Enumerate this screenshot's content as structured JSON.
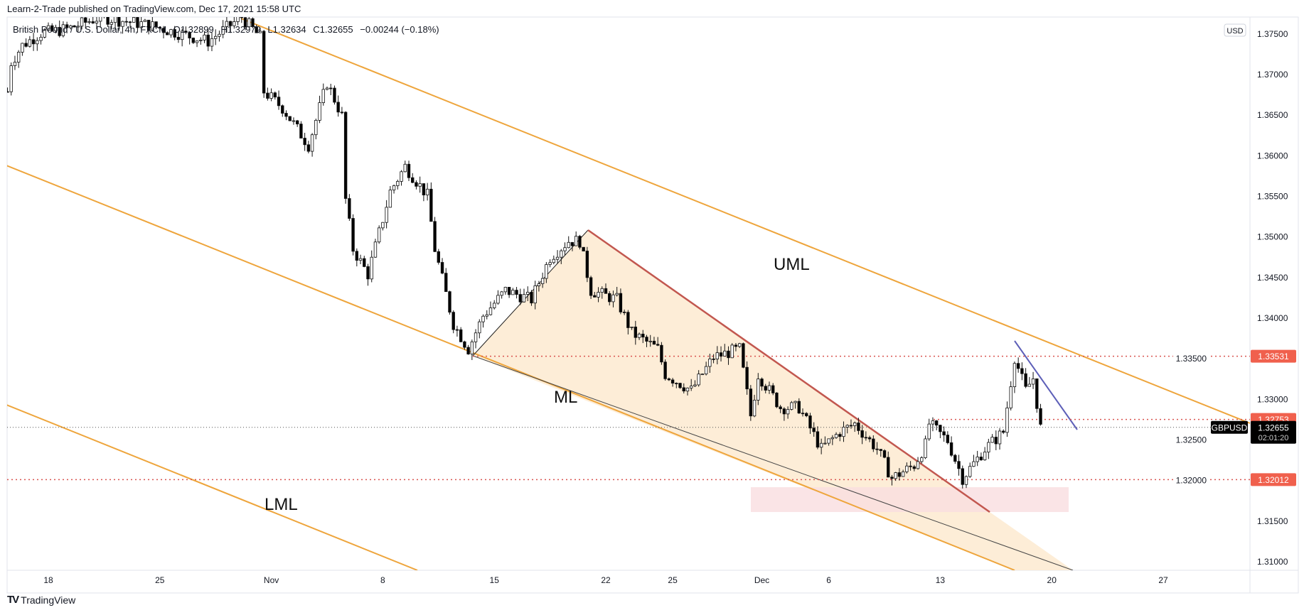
{
  "header": {
    "published": "Learn-2-Trade published on TradingView.com, Dec 17, 2021 15:58 UTC"
  },
  "legend": {
    "symbol": "British Pound / U.S. Dollar, 4h, FXCM",
    "open": "O1.32899",
    "high": "H1.32979",
    "low": "L1.32634",
    "close": "C1.32655",
    "change": "−0.00244 (−0.18%)"
  },
  "footer": {
    "logo": "TradingView"
  },
  "chart_data": {
    "type": "candlestick",
    "symbol": "GBPUSD",
    "currency": "USD",
    "interval": "4h",
    "colors": {
      "channel": "#eea53c",
      "wedge_fill": "#fdebd3",
      "wedge_upper": "#c2574f",
      "trend_blue": "#5d5fb8",
      "level": "#d9534f",
      "zone": "#f9dde0",
      "up_body": "#ffffff",
      "down_body": "#000000"
    },
    "y_ticks": [
      "1.37500",
      "1.37000",
      "1.36500",
      "1.36000",
      "1.35500",
      "1.35000",
      "1.34500",
      "1.34000",
      "1.33500",
      "1.33000",
      "1.32500",
      "1.32000",
      "1.31500",
      "1.31000"
    ],
    "x_ticks": [
      "18",
      "25",
      "Nov",
      "8",
      "15",
      "22",
      "25",
      "Dec",
      "6",
      "13",
      "20",
      "27"
    ],
    "ylim": [
      1.3085,
      1.379
    ],
    "labels": {
      "uml": "UML",
      "ml": "ML",
      "lml": "LML"
    },
    "levels": [
      {
        "price": "1.33531"
      },
      {
        "price": "1.32753"
      },
      {
        "price": "1.32012"
      }
    ],
    "last_price": {
      "symbol": "GBPUSD",
      "price": "1.32655",
      "countdown": "02:01:20"
    },
    "price_path": [
      {
        "t": "2021-10-14T04:00",
        "p": 1.3679
      },
      {
        "t": "2021-10-14T08:00",
        "p": 1.3715
      },
      {
        "t": "2021-10-14T20:00",
        "p": 1.3736
      },
      {
        "t": "2021-10-15T16:00",
        "p": 1.3751
      },
      {
        "t": "2021-10-18T20:00",
        "p": 1.3756
      },
      {
        "t": "2021-10-20T08:00",
        "p": 1.3771
      },
      {
        "t": "2021-10-22T12:00",
        "p": 1.3761
      },
      {
        "t": "2021-10-27T04:00",
        "p": 1.3741
      },
      {
        "t": "2021-10-28T16:00",
        "p": 1.3771
      },
      {
        "t": "2021-10-29T12:00",
        "p": 1.3746
      },
      {
        "t": "2021-10-29T16:00",
        "p": 1.3679
      },
      {
        "t": "2021-11-01T12:00",
        "p": 1.3659
      },
      {
        "t": "2021-11-02T16:00",
        "p": 1.3613
      },
      {
        "t": "2021-11-03T12:00",
        "p": 1.369
      },
      {
        "t": "2021-11-04T04:00",
        "p": 1.3649
      },
      {
        "t": "2021-11-04T08:00",
        "p": 1.3546
      },
      {
        "t": "2021-11-04T16:00",
        "p": 1.3485
      },
      {
        "t": "2021-11-05T08:00",
        "p": 1.3454
      },
      {
        "t": "2021-11-08T08:00",
        "p": 1.3556
      },
      {
        "t": "2021-11-09T00:00",
        "p": 1.3587
      },
      {
        "t": "2021-11-10T00:00",
        "p": 1.3551
      },
      {
        "t": "2021-11-10T08:00",
        "p": 1.3485
      },
      {
        "t": "2021-11-11T04:00",
        "p": 1.3393
      },
      {
        "t": "2021-11-11T20:00",
        "p": 1.3362
      },
      {
        "t": "2021-11-12T12:00",
        "p": 1.3403
      },
      {
        "t": "2021-11-15T12:00",
        "p": 1.3434
      },
      {
        "t": "2021-11-16T16:00",
        "p": 1.3423
      },
      {
        "t": "2021-11-17T12:00",
        "p": 1.3475
      },
      {
        "t": "2021-11-18T08:00",
        "p": 1.3495
      },
      {
        "t": "2021-11-18T20:00",
        "p": 1.3495
      },
      {
        "t": "2021-11-19T08:00",
        "p": 1.3434
      },
      {
        "t": "2021-11-22T12:00",
        "p": 1.3423
      },
      {
        "t": "2021-11-23T04:00",
        "p": 1.3382
      },
      {
        "t": "2021-11-24T08:00",
        "p": 1.3362
      },
      {
        "t": "2021-11-24T16:00",
        "p": 1.3331
      },
      {
        "t": "2021-11-25T20:00",
        "p": 1.3311
      },
      {
        "t": "2021-11-26T20:00",
        "p": 1.3352
      },
      {
        "t": "2021-11-30T00:00",
        "p": 1.3362
      },
      {
        "t": "2021-11-30T12:00",
        "p": 1.328
      },
      {
        "t": "2021-11-30T20:00",
        "p": 1.3331
      },
      {
        "t": "2021-12-01T20:00",
        "p": 1.329
      },
      {
        "t": "2021-12-02T16:00",
        "p": 1.329
      },
      {
        "t": "2021-12-03T16:00",
        "p": 1.3239
      },
      {
        "t": "2021-12-06T12:00",
        "p": 1.326
      },
      {
        "t": "2021-12-07T04:00",
        "p": 1.327
      },
      {
        "t": "2021-12-08T04:00",
        "p": 1.3239
      },
      {
        "t": "2021-12-08T20:00",
        "p": 1.3203
      },
      {
        "t": "2021-12-09T20:00",
        "p": 1.3219
      },
      {
        "t": "2021-12-10T08:00",
        "p": 1.3244
      },
      {
        "t": "2021-12-10T12:00",
        "p": 1.327
      },
      {
        "t": "2021-12-13T08:00",
        "p": 1.3249
      },
      {
        "t": "2021-12-14T00:00",
        "p": 1.3203
      },
      {
        "t": "2021-12-15T00:00",
        "p": 1.3239
      },
      {
        "t": "2021-12-15T20:00",
        "p": 1.326
      },
      {
        "t": "2021-12-16T08:00",
        "p": 1.3352
      },
      {
        "t": "2021-12-16T20:00",
        "p": 1.3311
      },
      {
        "t": "2021-12-17T04:00",
        "p": 1.3326
      },
      {
        "t": "2021-12-17T12:00",
        "p": 1.3265
      }
    ]
  }
}
